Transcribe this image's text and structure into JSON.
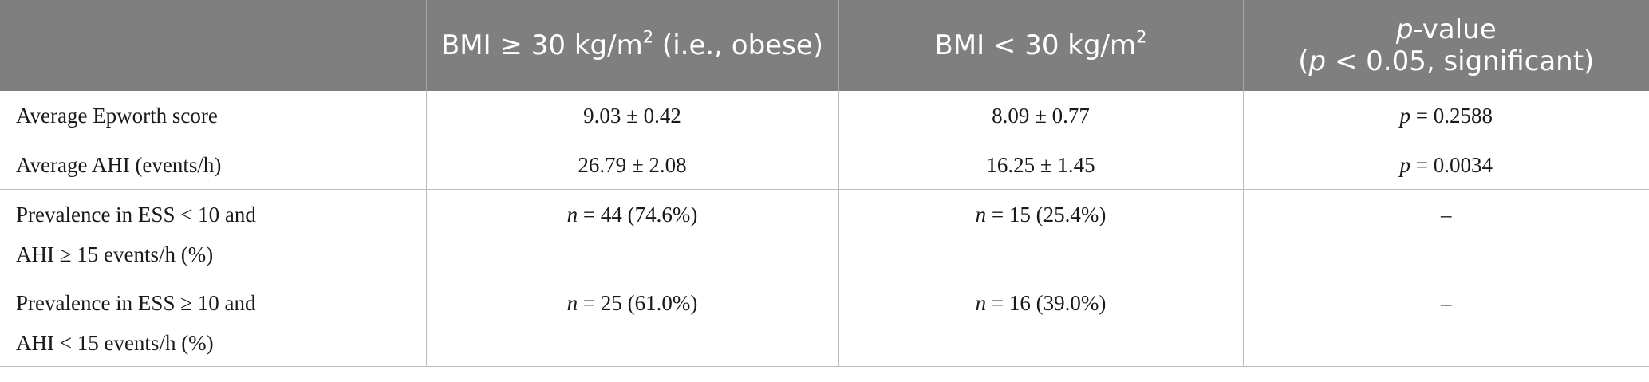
{
  "header": {
    "col0": "",
    "col1_prefix": "BMI ≥ 30 kg/m",
    "col1_sup": "2",
    "col1_suffix": " (i.e., obese)",
    "col2_prefix": "BMI < 30 kg/m",
    "col2_sup": "2",
    "col3_italic": "p",
    "col3_rest": "-value",
    "col3_line2_open": "(",
    "col3_line2_italic": "p",
    "col3_line2_rest": " < 0.05, significant)"
  },
  "rows": [
    {
      "label_lines": [
        "Average Epworth score"
      ],
      "obese": "9.03 ± 0.42",
      "nonobese": "8.09 ± 0.77",
      "p_italic": "p",
      "p_rest": " = 0.2588"
    },
    {
      "label_lines": [
        "Average AHI (events/h)"
      ],
      "obese": "26.79 ± 2.08",
      "nonobese": "16.25 ± 1.45",
      "p_italic": "p",
      "p_rest": " = 0.0034"
    },
    {
      "label_lines": [
        "Prevalence in ESS < 10 and",
        "AHI ≥ 15 events/h (%)"
      ],
      "obese_italic": "n",
      "obese_rest": " = 44 (74.6%)",
      "nonobese_italic": "n",
      "nonobese_rest": " = 15 (25.4%)",
      "p_text": "–"
    },
    {
      "label_lines": [
        "Prevalence in ESS ≥ 10 and",
        "AHI < 15 events/h (%)"
      ],
      "obese_italic": "n",
      "obese_rest": " = 25 (61.0%)",
      "nonobese_italic": "n",
      "nonobese_rest": " = 16 (39.0%)",
      "p_text": "–"
    }
  ]
}
